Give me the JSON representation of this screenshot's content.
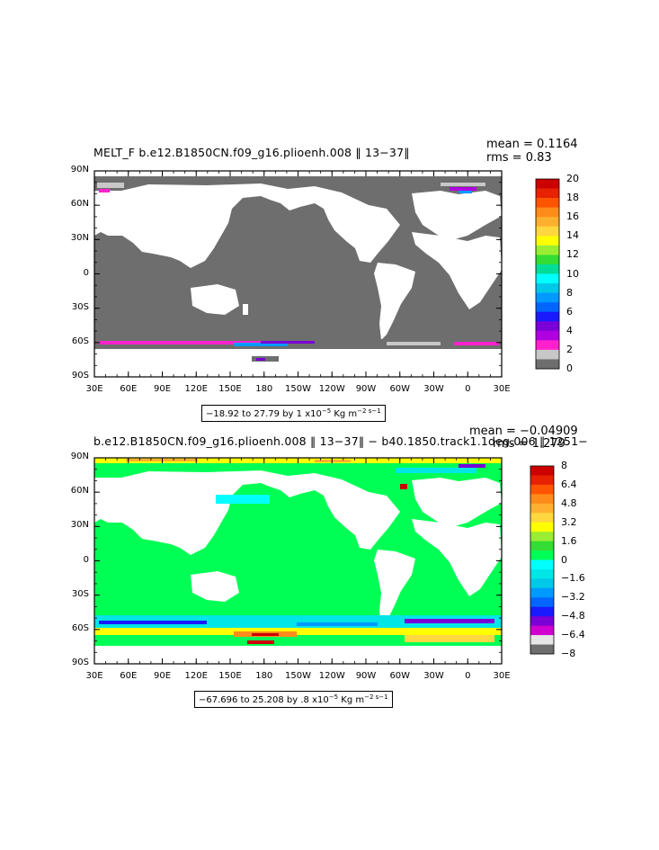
{
  "colors": {
    "land": "#ffffff",
    "ocean_top": "#6e6e6e",
    "ocean_bottom": "#00ff55",
    "grey_ice": "#bdbdbd"
  },
  "chart_data": [
    {
      "type": "heatmap",
      "title_left": "MELT_F  b.e12.B1850CN.f09_g16.plioenh.008  ‖ 13−37‖",
      "stat_mean": "mean = 0.1164",
      "stat_rms": "rms = 0.83",
      "info_range": "−18.92 to 27.79 by 1 x10",
      "info_exp": "−5",
      "info_units": " Kg m",
      "info_units_exp": "−2 s−1",
      "x_ticks": [
        "30E",
        "60E",
        "90E",
        "120E",
        "150E",
        "180",
        "150W",
        "120W",
        "90W",
        "60W",
        "30W",
        "0",
        "30E"
      ],
      "y_ticks": [
        "90N",
        "60N",
        "30N",
        "0",
        "30S",
        "60S",
        "90S"
      ],
      "colorbar": {
        "labels": [
          "20",
          "18",
          "16",
          "14",
          "12",
          "10",
          "8",
          "6",
          "4",
          "2",
          "0"
        ],
        "colors": [
          "#cc0000",
          "#e62200",
          "#ff5500",
          "#ff8c1a",
          "#ffb030",
          "#ffd740",
          "#ffff00",
          "#99ee33",
          "#33dd33",
          "#00dd99",
          "#00ffff",
          "#00c8e8",
          "#0099ff",
          "#0066ff",
          "#1a1aff",
          "#7a00d6",
          "#b000e0",
          "#ff22cc",
          "#c8c8c8",
          "#6e6e6e"
        ]
      }
    },
    {
      "type": "heatmap",
      "title_left": "b.e12.B1850CN.f09_g16.plioenh.008  ‖ 13−37‖  −  b40.1850.track1.1deg.006  ‖ 1251−",
      "stat_mean": "mean = −0.04909",
      "stat_rms": "rms = 1.279",
      "info_range": "−67.696 to 25.208 by .8 x10",
      "info_exp": "−5",
      "info_units": " Kg m",
      "info_units_exp": "−2 s−1",
      "x_ticks": [
        "30E",
        "60E",
        "90E",
        "120E",
        "150E",
        "180",
        "150W",
        "120W",
        "90W",
        "60W",
        "30W",
        "0",
        "30E"
      ],
      "y_ticks": [
        "90N",
        "60N",
        "30N",
        "0",
        "30S",
        "60S",
        "90S"
      ],
      "colorbar": {
        "labels": [
          "8",
          "6.4",
          "4.8",
          "3.2",
          "1.6",
          "0",
          "−1.6",
          "−3.2",
          "−4.8",
          "−6.4",
          "−8"
        ],
        "colors": [
          "#cc0000",
          "#e62200",
          "#ff5500",
          "#ff8c1a",
          "#ffb030",
          "#ffd740",
          "#ffff00",
          "#99ee33",
          "#33dd33",
          "#00ff55",
          "#00ffff",
          "#00e6e6",
          "#00c8e8",
          "#0099ff",
          "#0066ff",
          "#1a1aff",
          "#7a00d6",
          "#d000d0",
          "#e6e6e6",
          "#6e6e6e"
        ]
      }
    }
  ]
}
